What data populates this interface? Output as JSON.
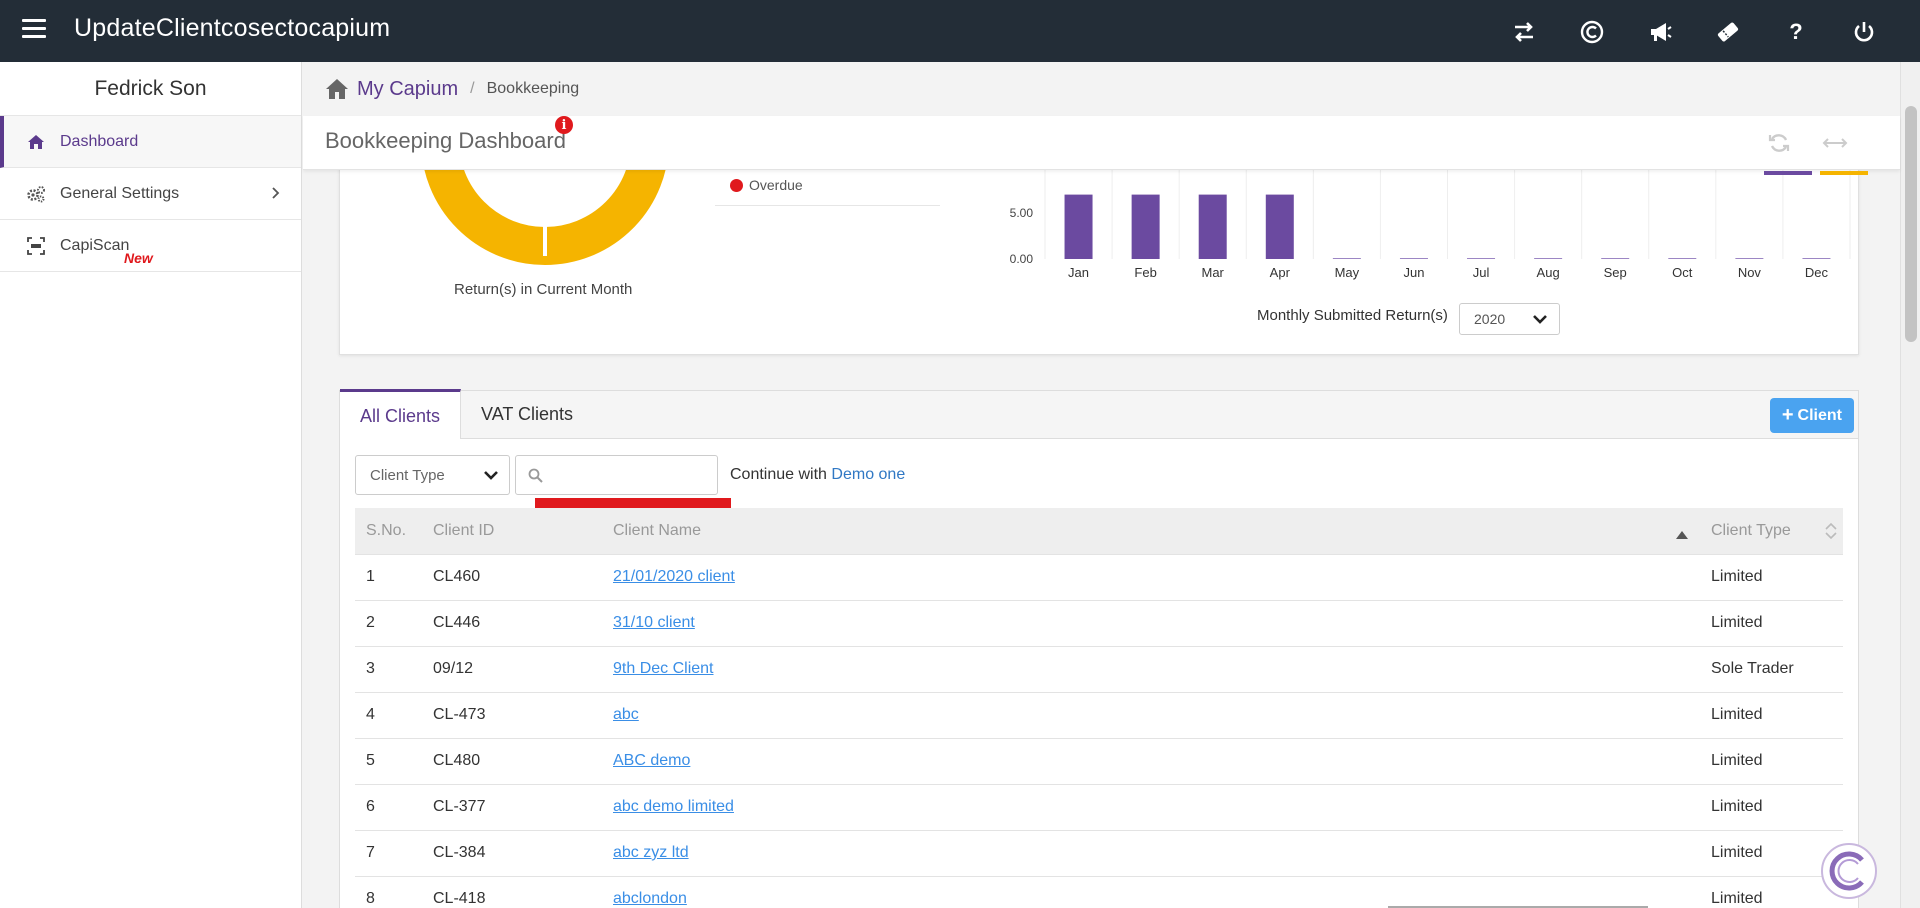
{
  "app": {
    "title": "UpdateClientcosectocapium"
  },
  "topbar": {
    "icons": [
      "swap-icon",
      "capium-c-icon",
      "megaphone-icon",
      "ticket-icon",
      "help-icon",
      "power-icon"
    ],
    "help_glyph": "?"
  },
  "sidebar": {
    "user_name": "Fedrick Son",
    "items": [
      {
        "label": "Dashboard",
        "icon": "home-icon"
      },
      {
        "label": "General Settings",
        "icon": "gears-icon"
      },
      {
        "label": "CapiScan",
        "icon": "barcode-icon",
        "badge": "New"
      }
    ]
  },
  "breadcrumb": {
    "root": "My Capium",
    "separator": "/",
    "current": "Bookkeeping"
  },
  "page": {
    "title": "Bookkeeping Dashboard",
    "info_badge": "i"
  },
  "colors": {
    "accent_purple": "#6b4aa0",
    "accent_yellow": "#f5b400",
    "overdue_red": "#e0191d",
    "link_blue": "#3a8ee6",
    "button_blue": "#4aa3f0"
  },
  "donut": {
    "caption": "Return(s) in Current Month",
    "legend": [
      {
        "label": "Overdue",
        "color": "#e0191d"
      }
    ]
  },
  "chart_data": {
    "type": "bar",
    "categories": [
      "Jan",
      "Feb",
      "Mar",
      "Apr",
      "May",
      "Jun",
      "Jul",
      "Aug",
      "Sep",
      "Oct",
      "Nov",
      "Dec"
    ],
    "values": [
      7,
      7,
      7,
      7,
      0,
      0,
      0,
      0,
      0,
      0,
      0,
      0
    ],
    "ytick_labels": [
      "5.00",
      "0.00"
    ],
    "yticks": [
      5,
      0
    ],
    "ylim": [
      0,
      7
    ],
    "xlabel": "Monthly Submitted Return(s)",
    "bar_color": "#6b4aa0",
    "grid": "vertical"
  },
  "chart_controls": {
    "year_value": "2020"
  },
  "clients": {
    "tabs": [
      "All Clients",
      "VAT Clients"
    ],
    "add_button": "Client",
    "client_type_placeholder": "Client Type",
    "search_value": "",
    "continue_text": "Continue with",
    "continue_link": "Demo one",
    "columns": [
      "S.No.",
      "Client ID",
      "Client Name",
      "Client Type"
    ],
    "rows": [
      {
        "sno": "1",
        "id": "CL460",
        "name": "21/01/2020 client",
        "type": "Limited"
      },
      {
        "sno": "2",
        "id": "CL446",
        "name": "31/10 client",
        "type": "Limited"
      },
      {
        "sno": "3",
        "id": "09/12",
        "name": "9th Dec Client",
        "type": "Sole Trader"
      },
      {
        "sno": "4",
        "id": "CL-473",
        "name": "abc",
        "type": "Limited"
      },
      {
        "sno": "5",
        "id": "CL480",
        "name": "ABC demo",
        "type": "Limited"
      },
      {
        "sno": "6",
        "id": "CL-377",
        "name": "abc demo limited",
        "type": "Limited"
      },
      {
        "sno": "7",
        "id": "CL-384",
        "name": "abc zyz ltd",
        "type": "Limited"
      },
      {
        "sno": "8",
        "id": "CL-418",
        "name": "abclondon",
        "type": "Limited"
      }
    ]
  }
}
